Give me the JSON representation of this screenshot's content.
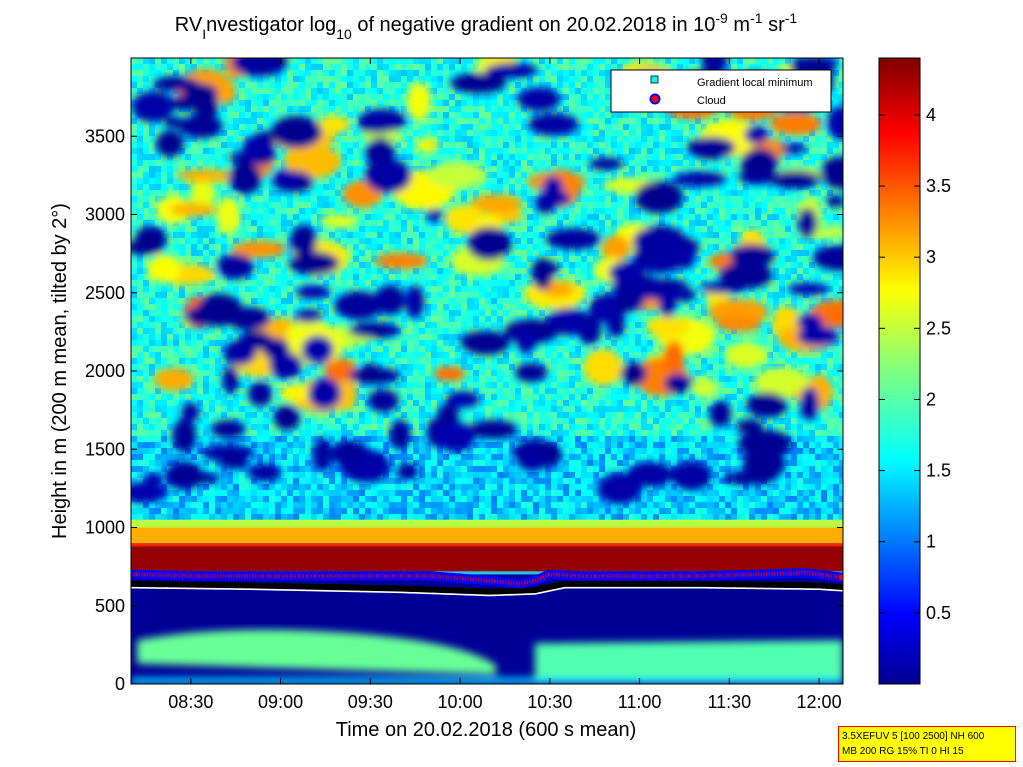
{
  "chart_data": {
    "type": "heatmap",
    "title_parts": {
      "a": "RV",
      "b": "I",
      "c": "nvestigator log",
      "d": "10",
      "e": " of negative gradient on 20.02.2018 in 10",
      "f": "-9",
      "g": " m",
      "h": "-1",
      "i": " sr",
      "j": "-1"
    },
    "xlabel": "Time on 20.02.2018 (600 s mean)",
    "ylabel": "Height in m (200 m mean, tilted by 2°)",
    "x_ticks": [
      "08:30",
      "09:00",
      "09:30",
      "10:00",
      "10:30",
      "11:00",
      "11:30",
      "12:00"
    ],
    "x_tick_minutes": [
      510,
      540,
      570,
      600,
      630,
      660,
      690,
      720
    ],
    "xlim_minutes": [
      490,
      728
    ],
    "y_ticks": [
      "0",
      "500",
      "1000",
      "1500",
      "2000",
      "2500",
      "3000",
      "3500"
    ],
    "y_tick_values": [
      0,
      500,
      1000,
      1500,
      2000,
      2500,
      3000,
      3500
    ],
    "ylim": [
      0,
      4000
    ],
    "colorbar": {
      "range": [
        0,
        4.4
      ],
      "ticks": [
        "0.5",
        "1",
        "1.5",
        "2",
        "2.5",
        "3",
        "3.5",
        "4"
      ],
      "tick_values": [
        0.5,
        1,
        1.5,
        2,
        2.5,
        3,
        3.5,
        4
      ],
      "colormap": "jet"
    },
    "legend": {
      "placement": "top-right",
      "entries": [
        {
          "label": "Gradient local minimum",
          "marker": "square",
          "color": "#00ffff"
        },
        {
          "label": "Cloud",
          "marker": "circle",
          "color": "#ff0000",
          "edge": "#0000ff"
        }
      ]
    },
    "bands_m": {
      "cloud_top": 800,
      "saturated_layer": [
        720,
        900
      ],
      "yellow_layer": [
        900,
        1000
      ]
    },
    "cloud_base_m": [
      {
        "t": 490,
        "h": 700
      },
      {
        "t": 510,
        "h": 690
      },
      {
        "t": 530,
        "h": 690
      },
      {
        "t": 560,
        "h": 690
      },
      {
        "t": 590,
        "h": 690
      },
      {
        "t": 610,
        "h": 660
      },
      {
        "t": 620,
        "h": 640
      },
      {
        "t": 625,
        "h": 660
      },
      {
        "t": 630,
        "h": 700
      },
      {
        "t": 640,
        "h": 690
      },
      {
        "t": 680,
        "h": 690
      },
      {
        "t": 700,
        "h": 700
      },
      {
        "t": 715,
        "h": 710
      },
      {
        "t": 728,
        "h": 680
      }
    ],
    "gradient_minimum_m": [
      {
        "t": 490,
        "h": 640
      },
      {
        "t": 530,
        "h": 630
      },
      {
        "t": 580,
        "h": 610
      },
      {
        "t": 610,
        "h": 590
      },
      {
        "t": 625,
        "h": 600
      },
      {
        "t": 635,
        "h": 640
      },
      {
        "t": 680,
        "h": 640
      },
      {
        "t": 720,
        "h": 630
      },
      {
        "t": 728,
        "h": 620
      }
    ]
  },
  "info_box": {
    "line1": "3.5XEFUV 5 [100 2500] NH 600",
    "line2": "MB 200 RG 15% TI 0 HI 15"
  }
}
